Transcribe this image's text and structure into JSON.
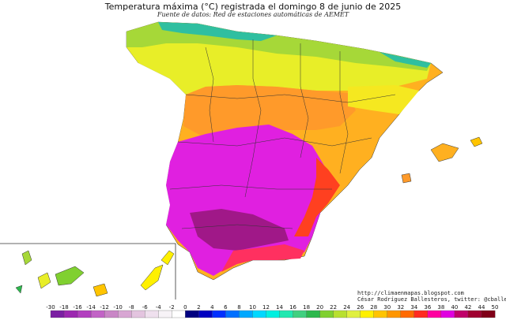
{
  "header": {
    "title": "Temperatura máxima (°C) registrada el domingo 8 de junio de 2025",
    "source": "Fuente de datos: Red de estaciones automáticas de AEMET"
  },
  "credits": {
    "url": "http://climaenmapas.blogspot.com",
    "author": "César Rodríguez Ballesteros, twitter: @cballesteros"
  },
  "legend": {
    "ticks": [
      "-30",
      "-18",
      "-16",
      "-14",
      "-12",
      "-10",
      "-8",
      "-6",
      "-4",
      "-2",
      "0",
      "2",
      "4",
      "6",
      "8",
      "10",
      "12",
      "14",
      "16",
      "18",
      "20",
      "22",
      "24",
      "26",
      "28",
      "30",
      "32",
      "34",
      "36",
      "38",
      "40",
      "42",
      "44",
      "50"
    ],
    "colors": [
      "#7b1fa2",
      "#9c27b0",
      "#b23fbf",
      "#c263c6",
      "#c986c6",
      "#d8a6d3",
      "#e3c4df",
      "#efe0ee",
      "#f7f3f7",
      "#ffffff",
      "#000080",
      "#0000c0",
      "#0030ff",
      "#0070ff",
      "#00a8ff",
      "#00d8ff",
      "#00f0e0",
      "#20e8b0",
      "#40d080",
      "#2db84d",
      "#80d030",
      "#b8e030",
      "#e0f040",
      "#fff000",
      "#ffc400",
      "#ff9600",
      "#ff6a00",
      "#ff2a20",
      "#ff00a0",
      "#e000e0",
      "#c0006a",
      "#a00030",
      "#800018"
    ]
  },
  "regions": [
    {
      "name": "north-coast",
      "color": "#2fbfa0"
    },
    {
      "name": "north-green",
      "color": "#a6d838"
    },
    {
      "name": "north-yellow",
      "color": "#e8ee28"
    },
    {
      "name": "central-orange",
      "color": "#ff9a2a"
    },
    {
      "name": "ebro-yellow",
      "color": "#f5e820"
    },
    {
      "name": "east-orange",
      "color": "#ffb020"
    },
    {
      "name": "south-magenta",
      "color": "#e020e0"
    },
    {
      "name": "south-hot",
      "color": "#a01888"
    },
    {
      "name": "southeast-red",
      "color": "#ff4020"
    },
    {
      "name": "south-coast",
      "color": "#ff3060"
    }
  ]
}
